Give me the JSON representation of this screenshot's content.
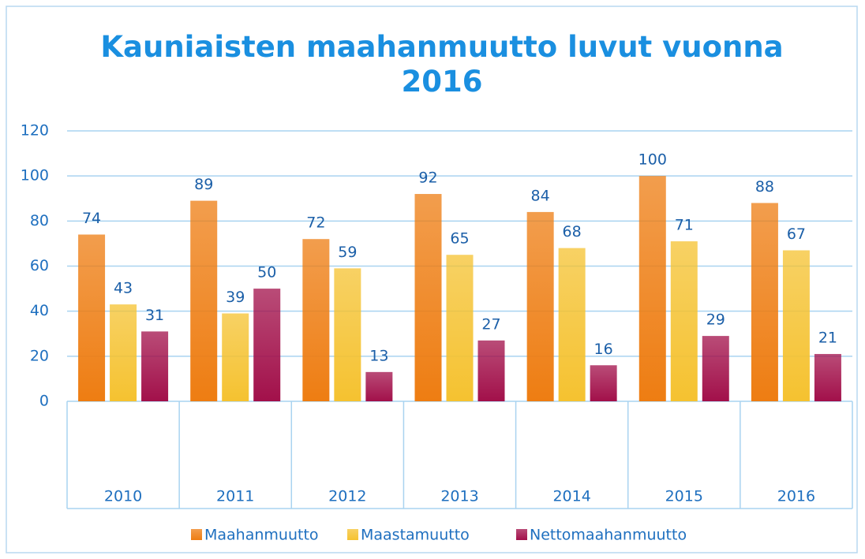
{
  "chart_data": {
    "type": "bar",
    "title": "Kauniaisten maahanmuutto luvut vuonna 2016",
    "categories": [
      "2010",
      "2011",
      "2012",
      "2013",
      "2014",
      "2015",
      "2016"
    ],
    "series": [
      {
        "name": "Maahanmuutto",
        "color": "#ee7d12",
        "values": [
          74,
          89,
          72,
          92,
          84,
          100,
          88
        ]
      },
      {
        "name": "Maastamuutto",
        "color": "#f5c230",
        "values": [
          43,
          39,
          59,
          65,
          68,
          71,
          67
        ]
      },
      {
        "name": "Nettomaahanmuutto",
        "color": "#a2104a",
        "values": [
          31,
          50,
          13,
          27,
          16,
          29,
          21
        ]
      }
    ],
    "ylim": [
      0,
      120
    ],
    "yticks": [
      0,
      20,
      40,
      60,
      80,
      100,
      120
    ],
    "grid": true,
    "legend": "bottom"
  }
}
